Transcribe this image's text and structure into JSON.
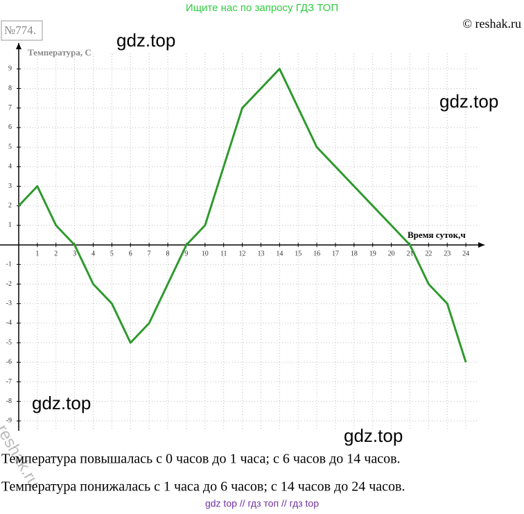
{
  "header": "Ищите нас по запросу ГДЗ ТОП",
  "copyright": "© reshak.ru",
  "number": "№774.",
  "watermarks": [
    "gdz.top",
    "gdz.top",
    "gdz.top",
    "gdz.top",
    "reshak.ru"
  ],
  "answer": [
    "Температура повышалась с 0 часов до 1 часа; с 6 часов до 14 часов.",
    "Температура понижалась с 1 часа до 6 часов; с 14 часов до 24 часов."
  ],
  "footer": "gdz top  //  гдз топ  //  гдз top",
  "chart_data": {
    "type": "line",
    "y_label": "Температура, С",
    "x_label": "Время суток,ч",
    "x": [
      0,
      1,
      2,
      3,
      4,
      5,
      6,
      7,
      8,
      9,
      10,
      11,
      12,
      13,
      14,
      15,
      16,
      17,
      18,
      19,
      20,
      21,
      22,
      23,
      24
    ],
    "values": [
      2,
      3,
      1,
      0,
      -2,
      -3,
      -5,
      -4,
      -2,
      0,
      1,
      4,
      7,
      8,
      9,
      7,
      5,
      4,
      3,
      2,
      1,
      0,
      -2,
      -3,
      -6
    ],
    "color": "#2e9a2e",
    "xlim": [
      0,
      25
    ],
    "ylim": [
      -9.5,
      10.5
    ],
    "xticks": [
      1,
      2,
      3,
      4,
      5,
      6,
      7,
      8,
      9,
      10,
      11,
      12,
      13,
      14,
      15,
      16,
      17,
      18,
      19,
      20,
      21,
      22,
      23,
      24
    ],
    "yticks": [
      -9,
      -8,
      -7,
      -6,
      -5,
      -4,
      -3,
      -2,
      -1,
      1,
      2,
      3,
      4,
      5,
      6,
      7,
      8,
      9
    ],
    "grid": true
  }
}
